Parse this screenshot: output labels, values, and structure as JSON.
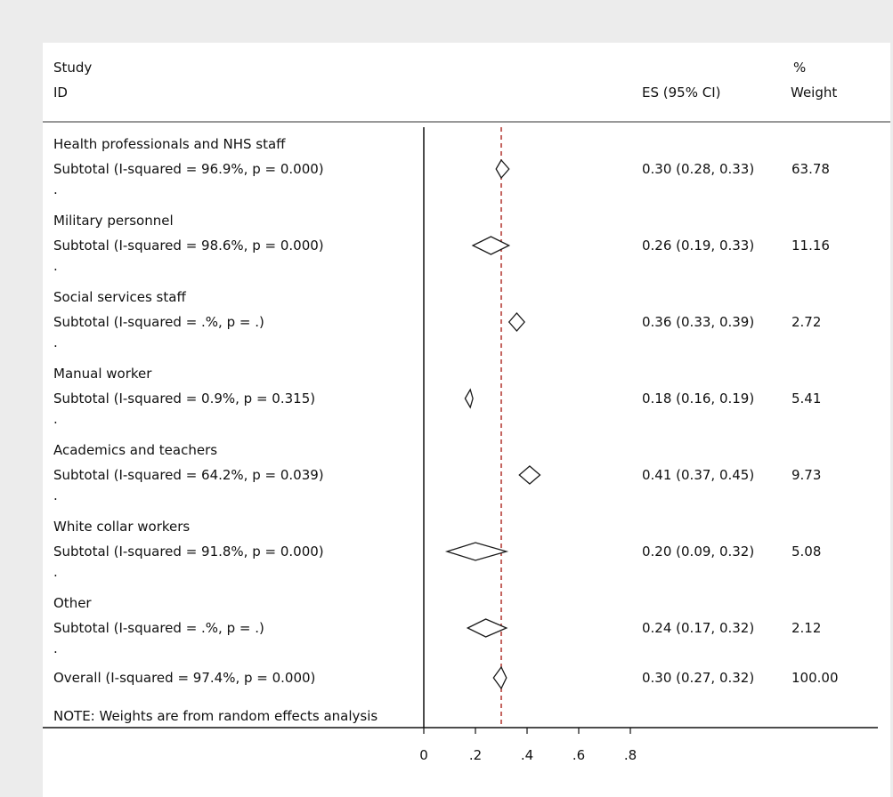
{
  "chart_data": {
    "type": "forest",
    "headers": {
      "study_line1": "Study",
      "study_line2": "ID",
      "es": "ES (95% CI)",
      "weight_line1": "%",
      "weight_line2": "Weight"
    },
    "groups": [
      {
        "label": "Health professionals and NHS staff",
        "subtotal_label": "Subtotal  (I-squared = 96.9%, p = 0.000)",
        "es": 0.3,
        "lower": 0.28,
        "upper": 0.33,
        "es_text": "0.30 (0.28, 0.33)",
        "weight": "63.78"
      },
      {
        "label": "Military personnel",
        "subtotal_label": "Subtotal  (I-squared = 98.6%, p = 0.000)",
        "es": 0.26,
        "lower": 0.19,
        "upper": 0.33,
        "es_text": "0.26 (0.19, 0.33)",
        "weight": "11.16"
      },
      {
        "label": "Social services staff",
        "subtotal_label": "Subtotal  (I-squared = .%, p = .)",
        "es": 0.36,
        "lower": 0.33,
        "upper": 0.39,
        "es_text": "0.36 (0.33, 0.39)",
        "weight": "2.72"
      },
      {
        "label": "Manual worker",
        "subtotal_label": "Subtotal  (I-squared = 0.9%, p = 0.315)",
        "es": 0.18,
        "lower": 0.16,
        "upper": 0.19,
        "es_text": "0.18 (0.16, 0.19)",
        "weight": "5.41"
      },
      {
        "label": "Academics and teachers",
        "subtotal_label": "Subtotal  (I-squared = 64.2%, p = 0.039)",
        "es": 0.41,
        "lower": 0.37,
        "upper": 0.45,
        "es_text": "0.41 (0.37, 0.45)",
        "weight": "9.73"
      },
      {
        "label": "White collar workers",
        "subtotal_label": "Subtotal  (I-squared = 91.8%, p = 0.000)",
        "es": 0.2,
        "lower": 0.09,
        "upper": 0.32,
        "es_text": "0.20 (0.09, 0.32)",
        "weight": "5.08"
      },
      {
        "label": "Other",
        "subtotal_label": "Subtotal  (I-squared = .%, p = .)",
        "es": 0.24,
        "lower": 0.17,
        "upper": 0.32,
        "es_text": "0.24 (0.17, 0.32)",
        "weight": "2.12"
      }
    ],
    "separator": ".",
    "overall": {
      "label": "Overall  (I-squared = 97.4%, p = 0.000)",
      "es": 0.3,
      "lower": 0.27,
      "upper": 0.32,
      "es_text": "0.30 (0.27, 0.32)",
      "weight": "100.00"
    },
    "note": "NOTE: Weights are from random effects analysis",
    "x_ticks": [
      0,
      0.2,
      0.4,
      0.6,
      0.8
    ],
    "x_tick_labels": [
      "0",
      ".2",
      ".4",
      ".6",
      ".8"
    ],
    "null_line": 0,
    "overall_line": 0.3,
    "colors": {
      "overall_line": "#b0302a",
      "diamond": "#1a1a1a",
      "panel": "#ffffff",
      "background": "#ececec"
    }
  }
}
